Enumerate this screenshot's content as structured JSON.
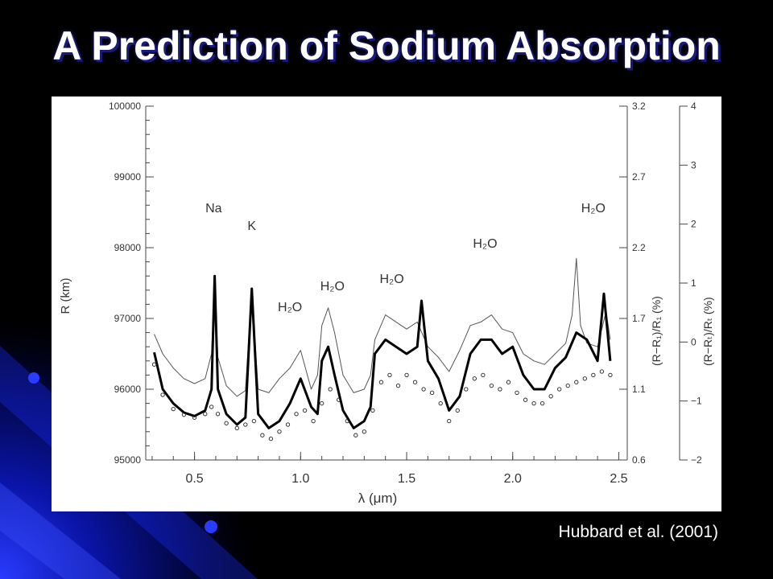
{
  "slide": {
    "title": "A Prediction of Sodium Absorption",
    "citation": "Hubbard et al. (2001)"
  },
  "chart_data": {
    "type": "line",
    "title": "",
    "xlabel": "λ (μm)",
    "ylabel": "R (km)",
    "ylabel_right1": "(R−R₁)/R₁ (%)",
    "ylabel_right2": "(R−Rₜ)/Rₜ (%)",
    "xlim": [
      0.27,
      2.54
    ],
    "ylim": [
      95000,
      100000
    ],
    "x_ticks": [
      "0.5",
      "1.0",
      "1.5",
      "2.0",
      "2.5"
    ],
    "y_ticks": [
      "95000",
      "96000",
      "97000",
      "98000",
      "99000",
      "100000"
    ],
    "y_right1_ticks": [
      "0.6",
      "1.1",
      "1.7",
      "2.2",
      "2.7",
      "3.2"
    ],
    "y_right2_ticks": [
      "−2",
      "−1",
      "0",
      "1",
      "2",
      "3",
      "4"
    ],
    "grid": false,
    "annotations": [
      {
        "text": "Na",
        "x": 0.59,
        "y": 98500
      },
      {
        "text": "K",
        "x": 0.77,
        "y": 98250
      },
      {
        "text": "H₂O",
        "x": 0.95,
        "y": 97100
      },
      {
        "text": "H₂O",
        "x": 1.15,
        "y": 97400
      },
      {
        "text": "H₂O",
        "x": 1.43,
        "y": 97500
      },
      {
        "text": "H₂O",
        "x": 1.87,
        "y": 98000
      },
      {
        "text": "H₂O",
        "x": 2.38,
        "y": 98500
      }
    ],
    "series": [
      {
        "style": "thin",
        "x": [
          0.31,
          0.35,
          0.4,
          0.45,
          0.5,
          0.55,
          0.58,
          0.595,
          0.61,
          0.65,
          0.7,
          0.74,
          0.77,
          0.8,
          0.85,
          0.9,
          0.95,
          1.0,
          1.05,
          1.08,
          1.1,
          1.13,
          1.16,
          1.2,
          1.25,
          1.3,
          1.33,
          1.35,
          1.4,
          1.45,
          1.5,
          1.55,
          1.6,
          1.65,
          1.7,
          1.75,
          1.8,
          1.85,
          1.9,
          1.95,
          2.0,
          2.05,
          2.1,
          2.15,
          2.2,
          2.25,
          2.28,
          2.3,
          2.32,
          2.35,
          2.4,
          2.44,
          2.46
        ],
        "y": [
          96780,
          96500,
          96300,
          96150,
          96080,
          96150,
          96500,
          97550,
          96450,
          96050,
          95900,
          95980,
          97400,
          96000,
          95950,
          96150,
          96300,
          96550,
          96000,
          96200,
          96900,
          97150,
          96800,
          96200,
          95950,
          96000,
          96200,
          96700,
          97050,
          96950,
          96850,
          96950,
          96600,
          96450,
          96250,
          96550,
          96900,
          96950,
          97050,
          96850,
          96800,
          96500,
          96400,
          96350,
          96500,
          96650,
          97050,
          97850,
          96900,
          96650,
          96600,
          97100,
          96700
        ]
      },
      {
        "style": "thick",
        "x": [
          0.31,
          0.35,
          0.4,
          0.45,
          0.5,
          0.55,
          0.58,
          0.595,
          0.61,
          0.65,
          0.7,
          0.74,
          0.77,
          0.8,
          0.85,
          0.9,
          0.95,
          1.0,
          1.05,
          1.08,
          1.1,
          1.13,
          1.16,
          1.2,
          1.25,
          1.3,
          1.33,
          1.35,
          1.4,
          1.45,
          1.5,
          1.55,
          1.57,
          1.6,
          1.65,
          1.7,
          1.75,
          1.8,
          1.85,
          1.9,
          1.95,
          2.0,
          2.05,
          2.1,
          2.15,
          2.2,
          2.25,
          2.3,
          2.35,
          2.4,
          2.43,
          2.46
        ],
        "y": [
          96520,
          96000,
          95800,
          95670,
          95620,
          95700,
          96000,
          97600,
          96000,
          95650,
          95500,
          95600,
          97420,
          95650,
          95450,
          95550,
          95800,
          96150,
          95750,
          95650,
          96400,
          96600,
          96200,
          95700,
          95450,
          95550,
          95750,
          96500,
          96700,
          96600,
          96500,
          96600,
          97250,
          96400,
          96150,
          95700,
          95900,
          96500,
          96700,
          96700,
          96500,
          96600,
          96200,
          96000,
          96000,
          96300,
          96450,
          96800,
          96700,
          96400,
          97350,
          96400
        ]
      },
      {
        "style": "circles",
        "x": [
          0.31,
          0.35,
          0.4,
          0.45,
          0.5,
          0.55,
          0.58,
          0.61,
          0.65,
          0.7,
          0.74,
          0.78,
          0.82,
          0.86,
          0.9,
          0.94,
          0.98,
          1.02,
          1.06,
          1.1,
          1.14,
          1.18,
          1.22,
          1.26,
          1.3,
          1.34,
          1.38,
          1.42,
          1.46,
          1.5,
          1.54,
          1.58,
          1.62,
          1.66,
          1.7,
          1.74,
          1.78,
          1.82,
          1.86,
          1.9,
          1.94,
          1.98,
          2.02,
          2.06,
          2.1,
          2.14,
          2.18,
          2.22,
          2.26,
          2.3,
          2.34,
          2.38,
          2.42,
          2.46
        ],
        "y": [
          96350,
          95920,
          95720,
          95640,
          95600,
          95650,
          95750,
          95650,
          95520,
          95450,
          95500,
          95550,
          95350,
          95300,
          95400,
          95500,
          95650,
          95700,
          95550,
          95800,
          96000,
          95850,
          95550,
          95350,
          95400,
          95700,
          96100,
          96200,
          96050,
          96200,
          96100,
          96000,
          95950,
          95800,
          95550,
          95700,
          96000,
          96150,
          96200,
          96050,
          96000,
          96100,
          95950,
          95850,
          95800,
          95800,
          95900,
          96000,
          96050,
          96100,
          96150,
          96200,
          96250,
          96200
        ]
      }
    ]
  }
}
